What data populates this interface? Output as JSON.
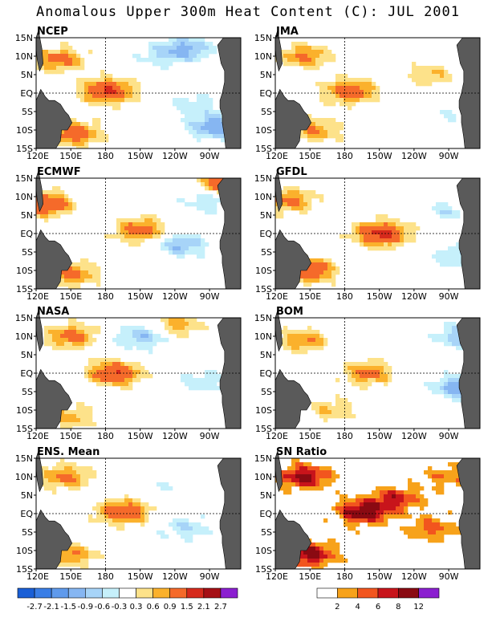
{
  "title": "Anomalous Upper 300m Heat Content (C): JUL 2001",
  "chart_data": {
    "type": "heatmap",
    "x_ticks": [
      "120E",
      "150E",
      "180",
      "150W",
      "120W",
      "90W"
    ],
    "y_ticks": [
      "15N",
      "10N",
      "5N",
      "EQ",
      "5S",
      "10S",
      "15S"
    ],
    "panels": [
      {
        "label": "NCEP",
        "blobs": [
          {
            "lon": 182,
            "lat": 0.5,
            "v": 1.6
          },
          {
            "lon": 140,
            "lat": 9,
            "v": 1.1
          },
          {
            "lon": 152,
            "lat": -11,
            "v": 1.3
          },
          {
            "lon": 275,
            "lat": -9,
            "v": -1.2
          },
          {
            "lon": 250,
            "lat": 12,
            "v": -1.0
          },
          {
            "lon": 225,
            "lat": 10,
            "v": -0.4
          },
          {
            "lon": 255,
            "lat": -3,
            "v": -0.5
          }
        ]
      },
      {
        "label": "JMA",
        "blobs": [
          {
            "lon": 185,
            "lat": 0.5,
            "v": 1.3
          },
          {
            "lon": 145,
            "lat": 10,
            "v": 1.0
          },
          {
            "lon": 155,
            "lat": -10,
            "v": 0.9
          },
          {
            "lon": 255,
            "lat": 5,
            "v": 0.6
          },
          {
            "lon": 280,
            "lat": -5,
            "v": -0.4
          }
        ]
      },
      {
        "label": "ECMWF",
        "blobs": [
          {
            "lon": 210,
            "lat": 1,
            "v": 1.2
          },
          {
            "lon": 128,
            "lat": 8,
            "v": 1.5
          },
          {
            "lon": 150,
            "lat": -11,
            "v": 1.1
          },
          {
            "lon": 245,
            "lat": -3,
            "v": -0.9
          },
          {
            "lon": 270,
            "lat": 9,
            "v": -0.6
          },
          {
            "lon": 287,
            "lat": 14,
            "v": 1.8
          }
        ]
      },
      {
        "label": "GFDL",
        "blobs": [
          {
            "lon": 212,
            "lat": 0,
            "v": 1.7
          },
          {
            "lon": 132,
            "lat": 9,
            "v": 1.0
          },
          {
            "lon": 150,
            "lat": -10,
            "v": 1.4
          },
          {
            "lon": 268,
            "lat": 6,
            "v": -0.5
          },
          {
            "lon": 278,
            "lat": -6,
            "v": -0.6
          }
        ]
      },
      {
        "label": "NASA",
        "blobs": [
          {
            "lon": 188,
            "lat": 0,
            "v": 1.5
          },
          {
            "lon": 150,
            "lat": 10,
            "v": 1.1
          },
          {
            "lon": 150,
            "lat": -12,
            "v": 0.7
          },
          {
            "lon": 212,
            "lat": 10,
            "v": -0.9
          },
          {
            "lon": 262,
            "lat": -2,
            "v": -0.5
          },
          {
            "lon": 240,
            "lat": 13,
            "v": 0.8
          }
        ]
      },
      {
        "label": "BOM",
        "blobs": [
          {
            "lon": 200,
            "lat": 0,
            "v": 1.0
          },
          {
            "lon": 145,
            "lat": 9,
            "v": 0.9
          },
          {
            "lon": 168,
            "lat": -10,
            "v": 0.6
          },
          {
            "lon": 280,
            "lat": -4,
            "v": -1.2
          },
          {
            "lon": 282,
            "lat": 10,
            "v": -0.9
          }
        ]
      },
      {
        "label": "ENS. Mean",
        "blobs": [
          {
            "lon": 195,
            "lat": 0.5,
            "v": 1.4
          },
          {
            "lon": 145,
            "lat": 10,
            "v": 1.0
          },
          {
            "lon": 150,
            "lat": -11,
            "v": 0.9
          },
          {
            "lon": 250,
            "lat": -4,
            "v": -0.6
          },
          {
            "lon": 225,
            "lat": 7,
            "v": -0.3
          }
        ]
      },
      {
        "label": "SN Ratio",
        "blobs": [
          {
            "lon": 195,
            "lat": 0.5,
            "v": 10
          },
          {
            "lon": 145,
            "lat": 10,
            "v": 9
          },
          {
            "lon": 150,
            "lat": -11,
            "v": 9
          },
          {
            "lon": 225,
            "lat": 4,
            "v": 7
          },
          {
            "lon": 255,
            "lat": -4,
            "v": 5
          },
          {
            "lon": 270,
            "lat": 10,
            "v": 4
          }
        ]
      }
    ],
    "colorbar_anomaly": {
      "thresholds": [
        -2.7,
        -2.1,
        -1.5,
        -0.9,
        -0.6,
        -0.3,
        0.3,
        0.6,
        0.9,
        1.5,
        2.1,
        2.7
      ],
      "tick_labels": [
        "-2.7",
        "-2.1",
        "-1.5",
        "-0.9",
        "-0.6",
        "-0.3",
        "0.3",
        "0.6",
        "0.9",
        "1.5",
        "2.1",
        "2.7"
      ],
      "colors": [
        "#1a5fd6",
        "#3a7ee6",
        "#5f9aec",
        "#86b6f2",
        "#a7d4f8",
        "#c6f0fb",
        "#ffffff",
        "#fde28a",
        "#fbb12c",
        "#f56a2a",
        "#d62a1c",
        "#a50f15",
        "#8b1fd0"
      ]
    },
    "colorbar_sn": {
      "thresholds": [
        2,
        4,
        6,
        8,
        12
      ],
      "tick_labels": [
        "2",
        "4",
        "6",
        "8",
        "12"
      ],
      "colors": [
        "#ffffff",
        "#f7a21a",
        "#f2551e",
        "#c8141b",
        "#8a0a12",
        "#8b1fd0"
      ]
    }
  }
}
